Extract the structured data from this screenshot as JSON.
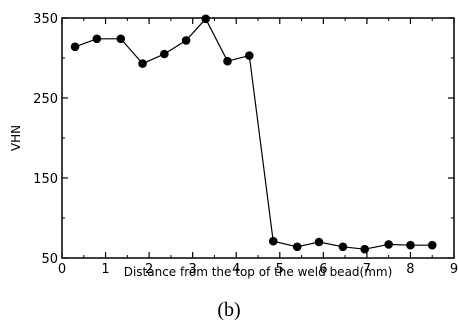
{
  "chart_data": {
    "type": "line",
    "title": "",
    "xlabel": "Distance from the top of the weld bead(mm)",
    "ylabel": "VHN",
    "xlim": [
      0,
      9
    ],
    "ylim": [
      50,
      350
    ],
    "x_ticks": [
      "0",
      "1",
      "2",
      "3",
      "4",
      "5",
      "6",
      "7",
      "8",
      "9"
    ],
    "y_ticks": [
      "50",
      "150",
      "250",
      "350"
    ],
    "grid": false,
    "legend": "none",
    "series": [
      {
        "x": [
          0.3,
          0.8,
          1.35,
          1.85,
          2.35,
          2.85,
          3.3,
          3.8,
          4.3,
          4.85,
          5.4,
          5.9,
          6.45,
          6.95,
          7.5,
          8.0,
          8.5
        ],
        "y": [
          314,
          324,
          324,
          293,
          305,
          322,
          349,
          296,
          303,
          71,
          64,
          70,
          64,
          61,
          67,
          66,
          66
        ],
        "marker": "filled-circle",
        "color": "#000000"
      }
    ]
  },
  "caption": "(b)"
}
